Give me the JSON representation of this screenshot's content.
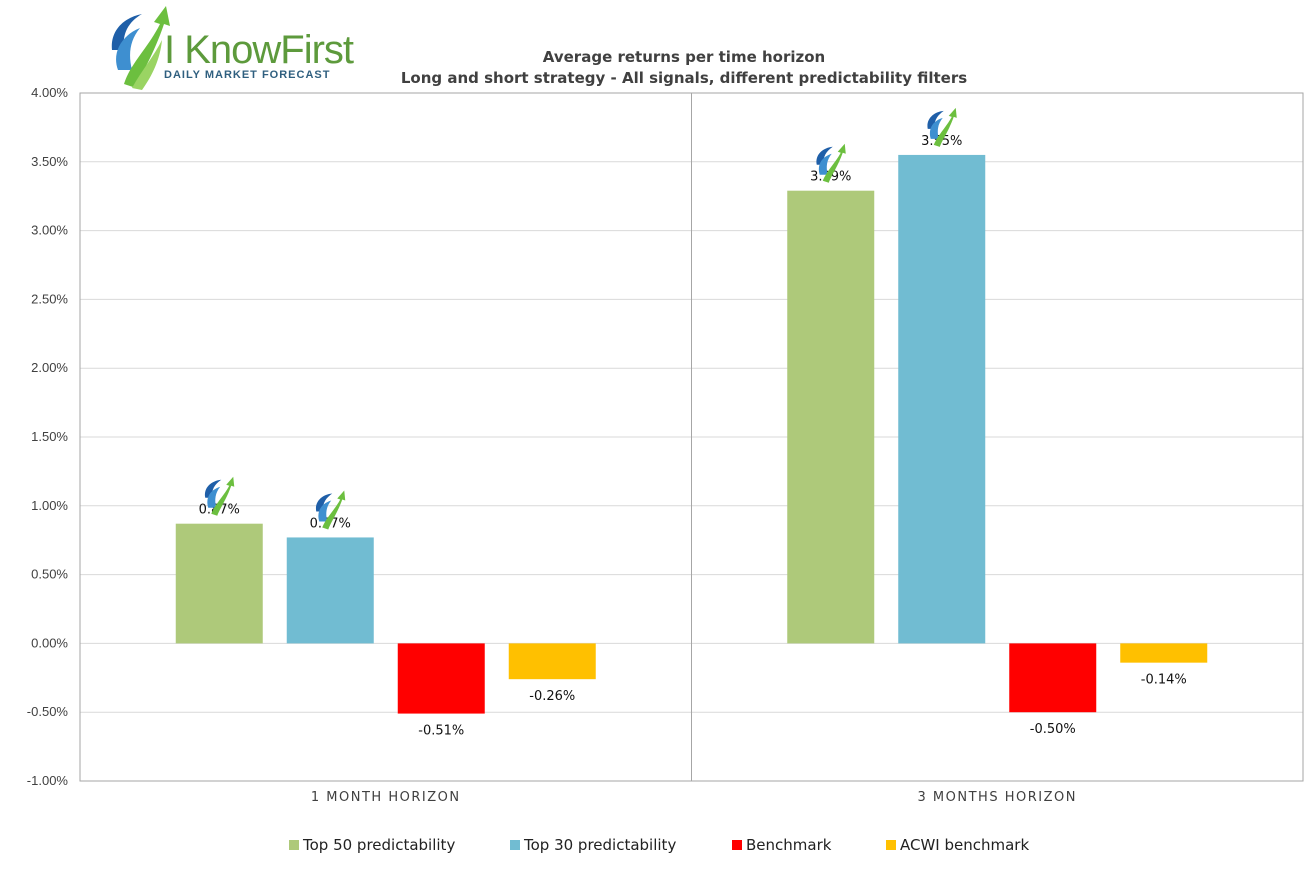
{
  "logo": {
    "name": "I KnowFirst",
    "tagline": "Daily Market Forecast"
  },
  "chart_data": {
    "type": "bar",
    "title": "Average returns per time horizon",
    "subtitle": "Long and short strategy - All signals, different predictability filters",
    "categories": [
      "1 MONTH HORIZON",
      "3 MONTHS HORIZON"
    ],
    "series": [
      {
        "name": "Top 50 predictability",
        "color": "#aec97a",
        "values": [
          0.87,
          3.29
        ],
        "labels": [
          "0.87%",
          "3.29%"
        ]
      },
      {
        "name": "Top 30 predictability",
        "color": "#71bcd2",
        "values": [
          0.77,
          3.55
        ],
        "labels": [
          "0.77%",
          "3.55%"
        ]
      },
      {
        "name": "Benchmark",
        "color": "#ff0000",
        "values": [
          -0.51,
          -0.5
        ],
        "labels": [
          "-0.51%",
          "-0.50%"
        ]
      },
      {
        "name": "ACWI benchmark",
        "color": "#ffc000",
        "values": [
          -0.26,
          -0.14
        ],
        "labels": [
          "-0.26%",
          "-0.14%"
        ]
      }
    ],
    "ylim": [
      -1.0,
      4.0
    ],
    "yticks": [
      4.0,
      3.5,
      3.0,
      2.5,
      2.0,
      1.5,
      1.0,
      0.5,
      0.0,
      -0.5,
      -1.0
    ],
    "ytick_labels": [
      "4.00%",
      "3.50%",
      "3.00%",
      "2.50%",
      "2.00%",
      "1.50%",
      "1.00%",
      "0.50%",
      "0.00%",
      "-0.50%",
      "-1.00%"
    ],
    "grid": true,
    "legend_position": "bottom",
    "icon_on_positive_bars": "iknowfirst-arrow-icon"
  }
}
